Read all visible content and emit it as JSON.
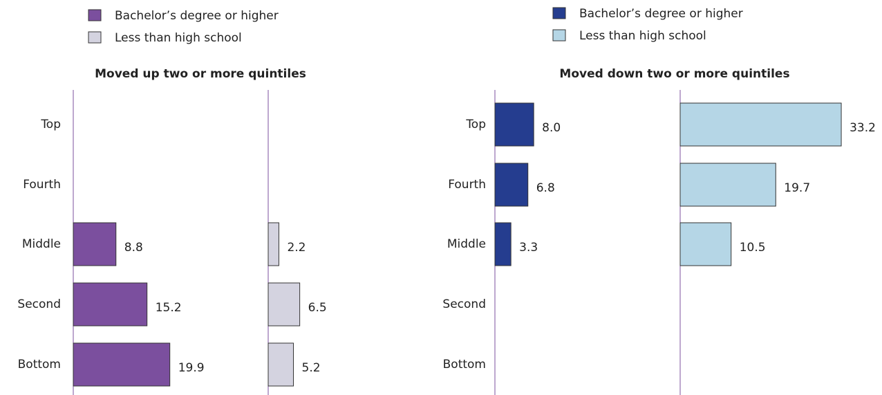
{
  "chart_data": [
    {
      "type": "bar",
      "orientation": "horizontal",
      "title": "Moved up two or more quintiles",
      "categories": [
        "Top",
        "Fourth",
        "Middle",
        "Second",
        "Bottom"
      ],
      "series": [
        {
          "name": "Bachelor’s degree or higher",
          "color": "#7b4f9e",
          "values": [
            null,
            null,
            8.8,
            15.2,
            19.9
          ],
          "value_labels": [
            null,
            null,
            "8.8",
            "15.2",
            "19.9"
          ]
        },
        {
          "name": "Less than high school",
          "color": "#d4d3e0",
          "values": [
            null,
            null,
            2.2,
            6.5,
            5.2
          ],
          "value_labels": [
            null,
            null,
            "2.2",
            "6.5",
            "5.2"
          ]
        }
      ]
    },
    {
      "type": "bar",
      "orientation": "horizontal",
      "title": "Moved down two or more quintiles",
      "categories": [
        "Top",
        "Fourth",
        "Middle",
        "Second",
        "Bottom"
      ],
      "series": [
        {
          "name": "Bachelor’s degree or higher",
          "color": "#253d8f",
          "values": [
            8.0,
            6.8,
            3.3,
            null,
            null
          ],
          "value_labels": [
            "8.0",
            "6.8",
            "3.3",
            null,
            null
          ]
        },
        {
          "name": "Less than high school",
          "color": "#b5d6e6",
          "values": [
            33.2,
            19.7,
            10.5,
            null,
            null
          ],
          "value_labels": [
            "33.2",
            "19.7",
            "10.5",
            null,
            null
          ]
        }
      ]
    }
  ]
}
